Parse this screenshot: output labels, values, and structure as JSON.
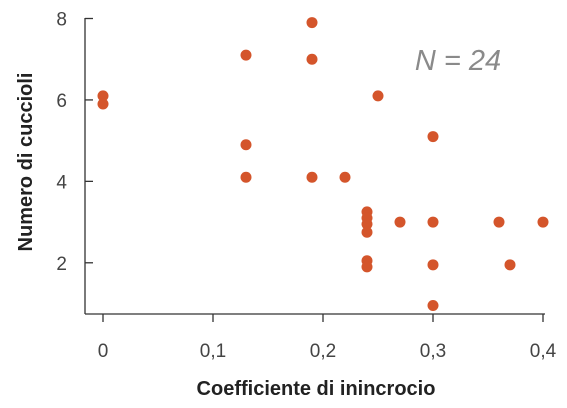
{
  "chart_data": {
    "type": "scatter",
    "xlabel": "Coefficiente di inincrocio",
    "ylabel": "Numero di cuccioli",
    "annotation": "N = 24",
    "xlim": [
      0,
      0.4
    ],
    "ylim": [
      1,
      8
    ],
    "x_ticks": [
      {
        "value": 0,
        "label": "0"
      },
      {
        "value": 0.1,
        "label": "0,1"
      },
      {
        "value": 0.2,
        "label": "0,2"
      },
      {
        "value": 0.3,
        "label": "0,3"
      },
      {
        "value": 0.4,
        "label": "0,4"
      }
    ],
    "y_ticks": [
      {
        "value": 2,
        "label": "2"
      },
      {
        "value": 4,
        "label": "4"
      },
      {
        "value": 6,
        "label": "6"
      },
      {
        "value": 8,
        "label": "8"
      }
    ],
    "marker_color": "#d4552b",
    "grid": false,
    "points": [
      {
        "x": 0,
        "y": 6.1
      },
      {
        "x": 0,
        "y": 5.9
      },
      {
        "x": 0.13,
        "y": 7.1
      },
      {
        "x": 0.13,
        "y": 4.9
      },
      {
        "x": 0.13,
        "y": 4.1
      },
      {
        "x": 0.19,
        "y": 7.9
      },
      {
        "x": 0.19,
        "y": 7.0
      },
      {
        "x": 0.19,
        "y": 4.1
      },
      {
        "x": 0.22,
        "y": 4.1
      },
      {
        "x": 0.25,
        "y": 6.1
      },
      {
        "x": 0.24,
        "y": 3.25
      },
      {
        "x": 0.24,
        "y": 3.1
      },
      {
        "x": 0.24,
        "y": 2.95
      },
      {
        "x": 0.24,
        "y": 2.75
      },
      {
        "x": 0.24,
        "y": 2.05
      },
      {
        "x": 0.24,
        "y": 1.9
      },
      {
        "x": 0.27,
        "y": 3.0
      },
      {
        "x": 0.3,
        "y": 5.1
      },
      {
        "x": 0.3,
        "y": 3.0
      },
      {
        "x": 0.3,
        "y": 1.95
      },
      {
        "x": 0.3,
        "y": 0.95
      },
      {
        "x": 0.36,
        "y": 3.0
      },
      {
        "x": 0.37,
        "y": 1.95
      },
      {
        "x": 0.4,
        "y": 3.0
      }
    ]
  }
}
